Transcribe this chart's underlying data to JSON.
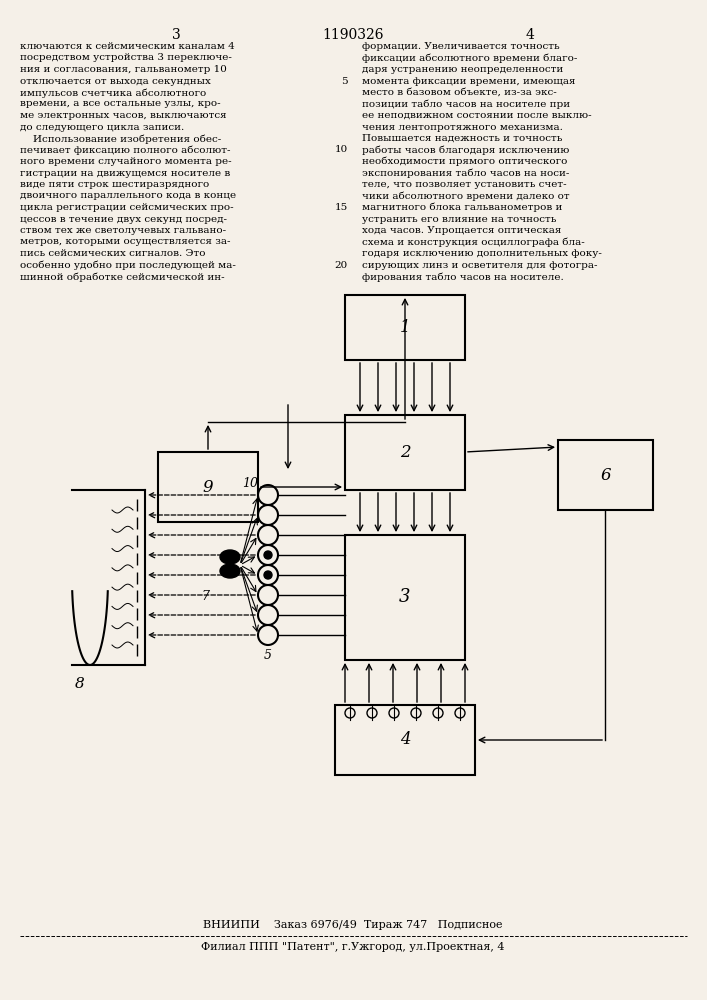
{
  "page_title": "1190326",
  "page_col_left": "3",
  "page_col_right": "4",
  "text_left": "ключаются к сейсмическим каналам 4\nпосредством устройства 3 переключе-\nния и согласования, гальванометр 10\nотключается от выхода секундных\nимпульсов счетчика абсолютного\nвремени, а все остальные узлы, кро-\nме электронных часов, выключаются\nдо следующего цикла записи.\n    Использование изобретения обес-\nпечивает фиксацию полного абсолют-\nного времени случайного момента ре-\nгистрации на движущемся носителе в\nвиде пяти строк шестиразрядного\nдвоичного параллельного кода в конце\nцикла регистрации сейсмических про-\nцессов в течение двух секунд посред-\nством тех же светолучевых гальвано-\nметров, которыми осуществляется за-\nпись сейсмических сигналов. Это\nособенно удобно при последующей ма-\nшинной обработке сейсмической ин-",
  "text_right": "формации. Увеличивается точность\nфиксации абсолютного времени бла-\nго-\nдаря устранению неопределенности\nмомента фиксации времени, имеющая\nместо в базовом объекте, из-за экс-\nпозиции табло часов на носителе при\nее неподвижном состоянии после выклю-\nчения лентопротяжного механизма.\nПовышается надежность и точность\nработы часов благодаря исключению\nнеобходимости прямого оптического\nэкспонирования табло часов на носи-\nтеле, что позволяет установить счет-\nчики абсолютного времени далеко от\nмагнитного блока гальванометров и\nустранить его влияние на точность\nхода часов. Упрощается оптическая\nсхема и конструкция осциллографа бла-\nгодаря исключению дополнительных фоку-\nсирующих линз и осветителя для фотогра-\nфирования табло часов на носителе.",
  "line_numbers_right": [
    "5",
    "10",
    "15",
    "20"
  ],
  "footer_line1": "ВНИИПИ    Заказ 6976/49  Тираж 747   Подписное",
  "footer_line2": "Филиал ППП \"Патент\", г.Ужгород, ул.Проектная, 4",
  "bg_color": "#f5f0e8"
}
